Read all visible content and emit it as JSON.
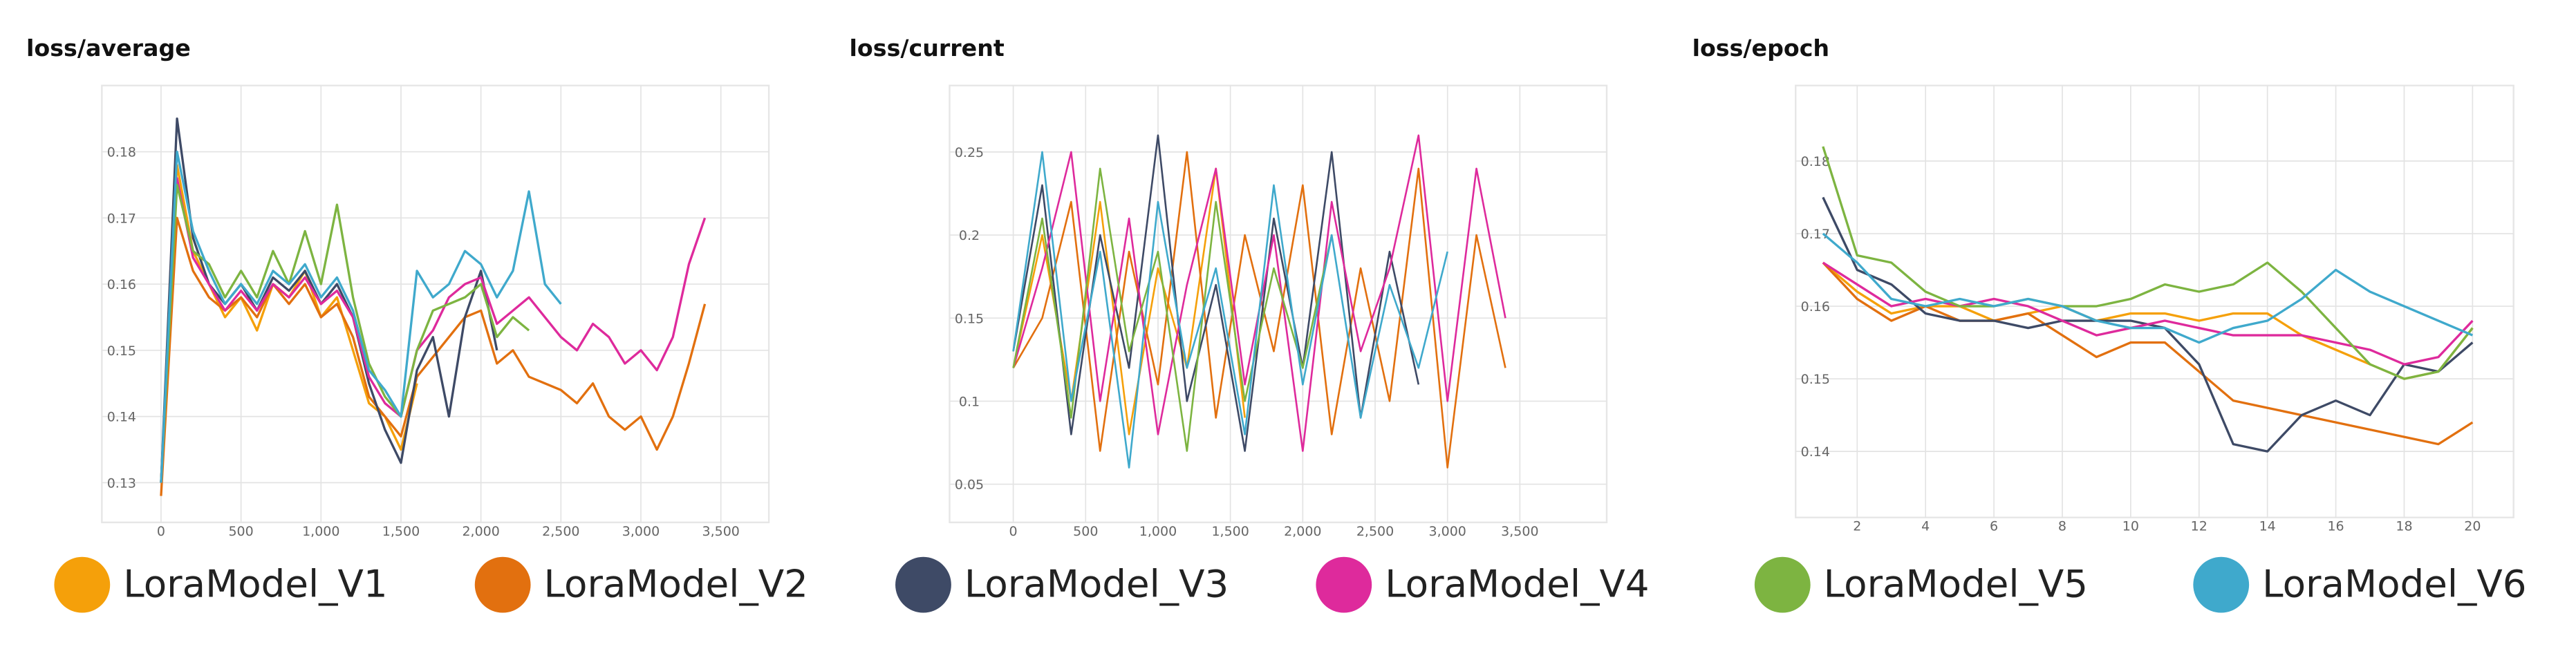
{
  "chart_data": [
    {
      "type": "line",
      "title": "loss/average",
      "grid": true,
      "x": [
        0,
        100,
        200,
        300,
        400,
        500,
        600,
        700,
        800,
        900,
        1000,
        1100,
        1200,
        1300,
        1400,
        1500,
        1600,
        1700,
        1800,
        1900,
        2000,
        2100,
        2200,
        2300,
        2400,
        2500,
        2600,
        2700,
        2800,
        2900,
        3000,
        3100,
        3200,
        3300,
        3400
      ],
      "xlim": [
        -370,
        3800
      ],
      "ylim": [
        0.124,
        0.19
      ],
      "xticks": [
        0,
        500,
        {
          "value": 1000,
          "label": "1,000"
        },
        {
          "value": 1500,
          "label": "1,500"
        },
        {
          "value": 2000,
          "label": "2,000"
        },
        {
          "value": 2500,
          "label": "2,500"
        },
        {
          "value": 3000,
          "label": "3,000"
        },
        {
          "value": 3500,
          "label": "3,500"
        }
      ],
      "yticks": [
        0.13,
        0.14,
        0.15,
        0.16,
        0.17,
        0.18
      ],
      "series": [
        {
          "name": "LoraModel_V1",
          "color": "#f5a00a",
          "values": [
            0.13,
            0.178,
            0.165,
            0.16,
            0.155,
            0.158,
            0.153,
            0.16,
            0.158,
            0.162,
            0.155,
            0.158,
            0.15,
            0.142,
            0.14,
            0.135,
            0.145,
            null,
            null,
            null,
            null,
            null,
            null,
            null,
            null,
            null,
            null,
            null,
            null,
            null,
            null,
            null,
            null,
            null,
            null
          ]
        },
        {
          "name": "LoraModel_V2",
          "color": "#e2700f",
          "values": [
            0.128,
            0.17,
            0.162,
            0.158,
            0.156,
            0.158,
            0.155,
            0.16,
            0.157,
            0.16,
            0.155,
            0.157,
            0.152,
            0.143,
            0.14,
            0.137,
            0.146,
            0.149,
            0.152,
            0.155,
            0.156,
            0.148,
            0.15,
            0.146,
            0.145,
            0.144,
            0.142,
            0.145,
            0.14,
            0.138,
            0.14,
            0.135,
            0.14,
            0.148,
            0.157
          ]
        },
        {
          "name": "LoraModel_V3",
          "color": "#3e4a66",
          "values": [
            0.13,
            0.185,
            0.167,
            0.16,
            0.157,
            0.16,
            0.156,
            0.161,
            0.159,
            0.162,
            0.157,
            0.16,
            0.155,
            0.145,
            0.138,
            0.133,
            0.147,
            0.152,
            0.14,
            0.155,
            0.162,
            0.15,
            null,
            null,
            null,
            null,
            null,
            null,
            null,
            null,
            null,
            null,
            null,
            null,
            null
          ]
        },
        {
          "name": "LoraModel_V4",
          "color": "#de2a9c",
          "values": [
            0.13,
            0.176,
            0.164,
            0.16,
            0.156,
            0.159,
            0.156,
            0.16,
            0.158,
            0.161,
            0.157,
            0.159,
            0.155,
            0.146,
            0.142,
            0.14,
            0.15,
            0.153,
            0.158,
            0.16,
            0.161,
            0.154,
            0.156,
            0.158,
            0.155,
            0.152,
            0.15,
            0.154,
            0.152,
            0.148,
            0.15,
            0.147,
            0.152,
            0.163,
            0.17
          ]
        },
        {
          "name": "LoraModel_V5",
          "color": "#7db441",
          "values": [
            0.13,
            0.175,
            0.165,
            0.163,
            0.158,
            0.162,
            0.158,
            0.165,
            0.16,
            0.168,
            0.16,
            0.172,
            0.158,
            0.148,
            0.143,
            0.14,
            0.15,
            0.156,
            0.157,
            0.158,
            0.16,
            0.152,
            0.155,
            0.153,
            null,
            null,
            null,
            null,
            null,
            null,
            null,
            null,
            null,
            null,
            null
          ]
        },
        {
          "name": "LoraModel_V6",
          "color": "#3fa9cc",
          "values": [
            0.13,
            0.18,
            0.168,
            0.162,
            0.157,
            0.16,
            0.157,
            0.162,
            0.16,
            0.163,
            0.158,
            0.161,
            0.156,
            0.147,
            0.144,
            0.14,
            0.162,
            0.158,
            0.16,
            0.165,
            0.163,
            0.158,
            0.162,
            0.174,
            0.16,
            0.157,
            null,
            null,
            null,
            null,
            null,
            null,
            null,
            null,
            null
          ]
        }
      ]
    },
    {
      "type": "line",
      "title": "loss/current",
      "grid": true,
      "x": [
        0,
        200,
        400,
        600,
        800,
        1000,
        1200,
        1400,
        1600,
        1800,
        2000,
        2200,
        2400,
        2600,
        2800,
        3000,
        3200,
        3400
      ],
      "xlim": [
        -440,
        4100
      ],
      "ylim": [
        0.027,
        0.29
      ],
      "xticks": [
        0,
        500,
        {
          "value": 1000,
          "label": "1,000"
        },
        {
          "value": 1500,
          "label": "1,500"
        },
        {
          "value": 2000,
          "label": "2,000"
        },
        {
          "value": 2500,
          "label": "2,500"
        },
        {
          "value": 3000,
          "label": "3,000"
        },
        {
          "value": 3500,
          "label": "3,500"
        }
      ],
      "yticks": [
        {
          "value": 0.05,
          "label": "0.05"
        },
        0.1,
        0.15,
        0.2,
        0.25
      ],
      "series": [
        {
          "values": [
            0.12,
            0.2,
            0.1,
            0.22,
            0.08,
            0.18,
            0.12,
            0.24,
            0.09,
            null,
            null,
            null,
            null,
            null,
            null,
            null,
            null,
            null
          ]
        },
        {
          "values": [
            0.12,
            0.15,
            0.22,
            0.07,
            0.19,
            0.11,
            0.25,
            0.09,
            0.2,
            0.13,
            0.23,
            0.08,
            0.18,
            0.1,
            0.24,
            0.06,
            0.2,
            0.12
          ]
        },
        {
          "values": [
            0.13,
            0.23,
            0.08,
            0.2,
            0.12,
            0.26,
            0.1,
            0.17,
            0.07,
            0.21,
            0.12,
            0.25,
            0.09,
            0.19,
            0.11,
            null,
            null,
            null
          ]
        },
        {
          "values": [
            0.12,
            0.18,
            0.25,
            0.1,
            0.21,
            0.08,
            0.17,
            0.24,
            0.11,
            0.2,
            0.07,
            0.22,
            0.13,
            0.18,
            0.26,
            0.1,
            0.24,
            0.15
          ]
        },
        {
          "values": [
            0.12,
            0.21,
            0.09,
            0.24,
            0.13,
            0.19,
            0.07,
            0.22,
            0.1,
            0.18,
            0.12,
            0.2,
            null,
            null,
            null,
            null,
            null,
            null
          ]
        },
        {
          "values": [
            0.13,
            0.25,
            0.1,
            0.19,
            0.06,
            0.22,
            0.12,
            0.18,
            0.08,
            0.23,
            0.11,
            0.2,
            0.09,
            0.17,
            0.12,
            0.19,
            null,
            null
          ]
        }
      ]
    },
    {
      "type": "line",
      "title": "loss/epoch",
      "grid": true,
      "x": [
        1,
        2,
        3,
        4,
        5,
        6,
        7,
        8,
        9,
        10,
        11,
        12,
        13,
        14,
        15,
        16,
        17,
        18,
        19,
        20
      ],
      "xlim": [
        0.2,
        21.2
      ],
      "ylim": [
        0.1309,
        0.1904
      ],
      "xticks": [
        2,
        4,
        6,
        8,
        10,
        12,
        14,
        16,
        18,
        20
      ],
      "yticks": [
        0.14,
        0.15,
        0.16,
        0.17,
        0.18
      ],
      "series": [
        {
          "values": [
            0.166,
            0.162,
            0.159,
            0.16,
            0.16,
            0.158,
            0.159,
            0.16,
            0.158,
            0.159,
            0.159,
            0.158,
            0.159,
            0.159,
            0.156,
            0.154,
            0.152,
            0.15,
            0.151,
            0.157
          ]
        },
        {
          "values": [
            0.166,
            0.161,
            0.158,
            0.16,
            0.158,
            0.158,
            0.159,
            0.156,
            0.153,
            0.155,
            0.155,
            0.151,
            0.147,
            0.146,
            0.145,
            0.144,
            0.143,
            0.142,
            0.141,
            0.144
          ]
        },
        {
          "values": [
            0.175,
            0.165,
            0.163,
            0.159,
            0.158,
            0.158,
            0.157,
            0.158,
            0.158,
            0.158,
            0.157,
            0.152,
            0.141,
            0.14,
            0.145,
            0.147,
            0.145,
            0.152,
            0.151,
            0.155
          ]
        },
        {
          "values": [
            0.166,
            0.163,
            0.16,
            0.161,
            0.16,
            0.161,
            0.16,
            0.158,
            0.156,
            0.157,
            0.158,
            0.157,
            0.156,
            0.156,
            0.156,
            0.155,
            0.154,
            0.152,
            0.153,
            0.158
          ]
        },
        {
          "values": [
            0.182,
            0.167,
            0.166,
            0.162,
            0.16,
            0.16,
            0.161,
            0.16,
            0.16,
            0.161,
            0.163,
            0.162,
            0.163,
            0.166,
            0.162,
            0.157,
            0.152,
            0.15,
            0.151,
            0.157
          ]
        },
        {
          "values": [
            0.17,
            0.166,
            0.161,
            0.16,
            0.161,
            0.16,
            0.161,
            0.16,
            0.158,
            0.157,
            0.157,
            0.155,
            0.157,
            0.158,
            0.161,
            0.165,
            0.162,
            0.16,
            0.158,
            0.156
          ]
        }
      ]
    }
  ]
}
